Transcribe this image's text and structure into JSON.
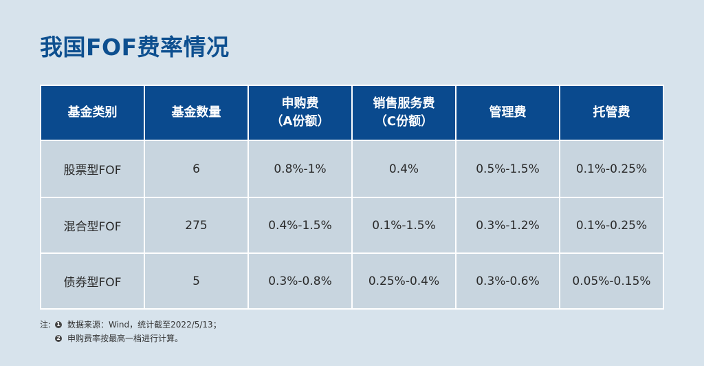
{
  "title": "我国FOF费率情况",
  "table": {
    "headers": [
      "基金类别",
      "基金数量",
      "申购费\n（A份额）",
      "销售服务费\n（C份额）",
      "管理费",
      "托管费"
    ],
    "rows": [
      [
        "股票型FOF",
        "6",
        "0.8%-1%",
        "0.4%",
        "0.5%-1.5%",
        "0.1%-0.25%"
      ],
      [
        "混合型FOF",
        "275",
        "0.4%-1.5%",
        "0.1%-1.5%",
        "0.3%-1.2%",
        "0.1%-0.25%"
      ],
      [
        "债券型FOF",
        "5",
        "0.3%-0.8%",
        "0.25%-0.4%",
        "0.3%-0.6%",
        "0.05%-0.15%"
      ]
    ]
  },
  "notes": {
    "prefix": "注:",
    "items": [
      {
        "num": "1",
        "text": "数据来源：Wind，统计截至2022/5/13；"
      },
      {
        "num": "2",
        "text": "申购费率按最高一档进行计算。"
      }
    ]
  }
}
